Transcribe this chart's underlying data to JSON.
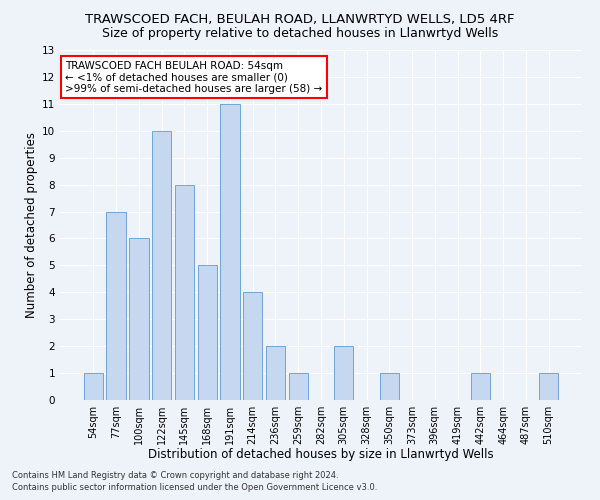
{
  "title": "TRAWSCOED FACH, BEULAH ROAD, LLANWRTYD WELLS, LD5 4RF",
  "subtitle": "Size of property relative to detached houses in Llanwrtyd Wells",
  "xlabel": "Distribution of detached houses by size in Llanwrtyd Wells",
  "ylabel": "Number of detached properties",
  "footnote1": "Contains HM Land Registry data © Crown copyright and database right 2024.",
  "footnote2": "Contains public sector information licensed under the Open Government Licence v3.0.",
  "bar_labels": [
    "54sqm",
    "77sqm",
    "100sqm",
    "122sqm",
    "145sqm",
    "168sqm",
    "191sqm",
    "214sqm",
    "236sqm",
    "259sqm",
    "282sqm",
    "305sqm",
    "328sqm",
    "350sqm",
    "373sqm",
    "396sqm",
    "419sqm",
    "442sqm",
    "464sqm",
    "487sqm",
    "510sqm"
  ],
  "bar_values": [
    1,
    7,
    6,
    10,
    8,
    5,
    11,
    4,
    2,
    1,
    0,
    2,
    0,
    1,
    0,
    0,
    0,
    1,
    0,
    0,
    1
  ],
  "bar_color": "#c5d8f0",
  "bar_edgecolor": "#5b9bd5",
  "annotation_title": "TRAWSCOED FACH BEULAH ROAD: 54sqm",
  "annotation_line1": "← <1% of detached houses are smaller (0)",
  "annotation_line2": ">99% of semi-detached houses are larger (58) →",
  "annotation_box_color": "#ffffff",
  "annotation_box_edgecolor": "#ff0000",
  "ylim": [
    0,
    13
  ],
  "yticks": [
    0,
    1,
    2,
    3,
    4,
    5,
    6,
    7,
    8,
    9,
    10,
    11,
    12,
    13
  ],
  "bg_color": "#eef3fa",
  "plot_bg_color": "#eef3fa",
  "grid_color": "#ffffff",
  "title_fontsize": 9.5,
  "subtitle_fontsize": 9,
  "axis_label_fontsize": 8.5,
  "tick_fontsize": 7,
  "annotation_fontsize": 7.5,
  "footnote_fontsize": 6
}
